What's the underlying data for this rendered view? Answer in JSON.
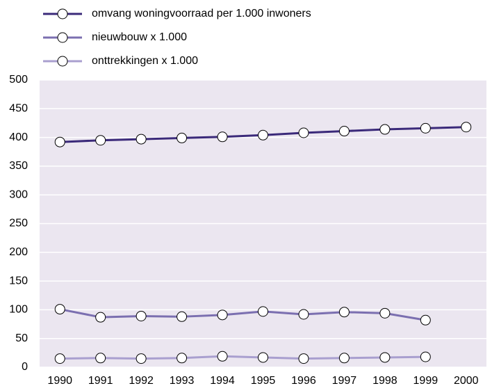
{
  "chart_data": {
    "type": "line",
    "categories": [
      "1990",
      "1991",
      "1992",
      "1993",
      "1994",
      "1995",
      "1996",
      "1997",
      "1998",
      "1999",
      "2000"
    ],
    "series": [
      {
        "name": "omvang woningvoorraad per 1.000 inwoners",
        "color": "#3b2a7a",
        "values": [
          392,
          395,
          397,
          399,
          401,
          404,
          408,
          411,
          414,
          416,
          418
        ]
      },
      {
        "name": "nieuwbouw x 1.000",
        "color": "#7b6fb0",
        "values": [
          101,
          87,
          89,
          88,
          91,
          97,
          92,
          96,
          94,
          82,
          null
        ]
      },
      {
        "name": "onttrekkingen x 1.000",
        "color": "#a99fcf",
        "values": [
          15,
          16,
          15,
          16,
          19,
          17,
          15,
          16,
          17,
          18,
          null
        ]
      }
    ],
    "ylim": [
      0,
      500
    ],
    "yticks": [
      0,
      50,
      100,
      150,
      200,
      250,
      300,
      350,
      400,
      450,
      500
    ],
    "grid": true,
    "legend": "top-left"
  }
}
